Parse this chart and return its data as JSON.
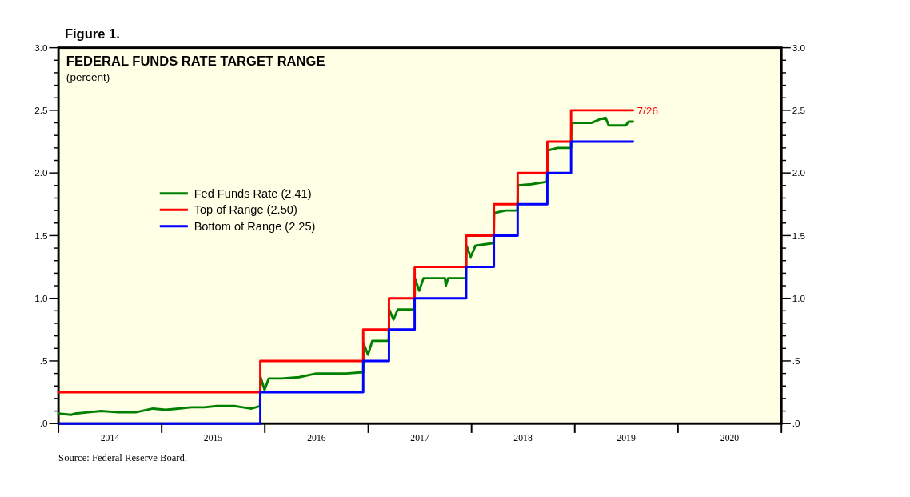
{
  "chart_data": {
    "type": "step",
    "title": "Figure 1.",
    "subtitle": "FEDERAL FUNDS RATE TARGET RANGE",
    "ylabel": "(percent)",
    "xlim": [
      "2014-01-01",
      "2021-01-01"
    ],
    "xticks": [
      {
        "value": "2014-01-01",
        "label": null
      },
      {
        "value": "2014-07-02",
        "label": "2014"
      },
      {
        "value": "2015-01-01",
        "label": null
      },
      {
        "value": "2015-07-02",
        "label": "2015"
      },
      {
        "value": "2016-01-01",
        "label": null
      },
      {
        "value": "2016-07-02",
        "label": "2016"
      },
      {
        "value": "2017-01-01",
        "label": null
      },
      {
        "value": "2017-07-02",
        "label": "2017"
      },
      {
        "value": "2018-01-01",
        "label": null
      },
      {
        "value": "2018-07-02",
        "label": "2018"
      },
      {
        "value": "2019-01-01",
        "label": null
      },
      {
        "value": "2019-07-02",
        "label": "2019"
      },
      {
        "value": "2020-01-01",
        "label": null
      },
      {
        "value": "2020-07-02",
        "label": "2020"
      },
      {
        "value": "2021-01-01",
        "label": null
      }
    ],
    "ylim": [
      0,
      3
    ],
    "yticks": [
      {
        "value": 0,
        "label": ".0"
      },
      {
        "value": 0.1,
        "label": null
      },
      {
        "value": 0.2,
        "label": null
      },
      {
        "value": 0.3,
        "label": null
      },
      {
        "value": 0.4,
        "label": null
      },
      {
        "value": 0.5,
        "label": ".5"
      },
      {
        "value": 0.6,
        "label": null
      },
      {
        "value": 0.7,
        "label": null
      },
      {
        "value": 0.8,
        "label": null
      },
      {
        "value": 0.9,
        "label": null
      },
      {
        "value": 1,
        "label": "1.0"
      },
      {
        "value": 1.1,
        "label": null
      },
      {
        "value": 1.2,
        "label": null
      },
      {
        "value": 1.3,
        "label": null
      },
      {
        "value": 1.4,
        "label": null
      },
      {
        "value": 1.5,
        "label": "1.5"
      },
      {
        "value": 1.6,
        "label": null
      },
      {
        "value": 1.7,
        "label": null
      },
      {
        "value": 1.8,
        "label": null
      },
      {
        "value": 1.9,
        "label": null
      },
      {
        "value": 2,
        "label": "2.0"
      },
      {
        "value": 2.1,
        "label": null
      },
      {
        "value": 2.2,
        "label": null
      },
      {
        "value": 2.3,
        "label": null
      },
      {
        "value": 2.4,
        "label": null
      },
      {
        "value": 2.5,
        "label": "2.5"
      },
      {
        "value": 2.6,
        "label": null
      },
      {
        "value": 2.7,
        "label": null
      },
      {
        "value": 2.8,
        "label": null
      },
      {
        "value": 2.9,
        "label": null
      },
      {
        "value": 3,
        "label": "3.0"
      }
    ],
    "y2lim": [
      0,
      3
    ],
    "y2ticks": [
      {
        "value": 0,
        "label": ".0"
      },
      {
        "value": 0.1,
        "label": null
      },
      {
        "value": 0.2,
        "label": null
      },
      {
        "value": 0.3,
        "label": null
      },
      {
        "value": 0.4,
        "label": null
      },
      {
        "value": 0.5,
        "label": ".5"
      },
      {
        "value": 0.6,
        "label": null
      },
      {
        "value": 0.7,
        "label": null
      },
      {
        "value": 0.8,
        "label": null
      },
      {
        "value": 0.9,
        "label": null
      },
      {
        "value": 1,
        "label": "1.0"
      },
      {
        "value": 1.1,
        "label": null
      },
      {
        "value": 1.2,
        "label": null
      },
      {
        "value": 1.3,
        "label": null
      },
      {
        "value": 1.4,
        "label": null
      },
      {
        "value": 1.5,
        "label": "1.5"
      },
      {
        "value": 1.6,
        "label": null
      },
      {
        "value": 1.7,
        "label": null
      },
      {
        "value": 1.8,
        "label": null
      },
      {
        "value": 1.9,
        "label": null
      },
      {
        "value": 2,
        "label": "2.0"
      },
      {
        "value": 2.1,
        "label": null
      },
      {
        "value": 2.2,
        "label": null
      },
      {
        "value": 2.3,
        "label": null
      },
      {
        "value": 2.4,
        "label": null
      },
      {
        "value": 2.5,
        "label": "2.5"
      },
      {
        "value": 2.6,
        "label": null
      },
      {
        "value": 2.7,
        "label": null
      },
      {
        "value": 2.8,
        "label": null
      },
      {
        "value": 2.9,
        "label": null
      },
      {
        "value": 3,
        "label": "3.0"
      }
    ],
    "grid": false,
    "legend": "left",
    "series": [
      {
        "name": "Fed Funds Rate (2.41)",
        "color": "#008000",
        "type": "line",
        "x": [
          "2014-01-01",
          "2014-02-15",
          "2014-03-01",
          "2014-04-15",
          "2014-06-01",
          "2014-08-01",
          "2014-10-01",
          "2014-12-01",
          "2015-01-15",
          "2015-03-01",
          "2015-04-15",
          "2015-06-01",
          "2015-07-15",
          "2015-08-15",
          "2015-09-15",
          "2015-10-15",
          "2015-11-15",
          "2015-12-15",
          "2015-12-17",
          "2015-12-31",
          "2016-01-15",
          "2016-03-01",
          "2016-05-01",
          "2016-07-01",
          "2016-09-01",
          "2016-10-15",
          "2016-12-14",
          "2016-12-15",
          "2016-12-31",
          "2017-01-15",
          "2017-03-14",
          "2017-03-16",
          "2017-03-31",
          "2017-04-15",
          "2017-06-13",
          "2017-06-15",
          "2017-06-30",
          "2017-07-15",
          "2017-09-29",
          "2017-10-02",
          "2017-10-10",
          "2017-12-12",
          "2017-12-14",
          "2017-12-29",
          "2018-01-15",
          "2018-03-20",
          "2018-03-22",
          "2018-05-01",
          "2018-06-12",
          "2018-06-14",
          "2018-08-01",
          "2018-09-25",
          "2018-09-27",
          "2018-11-01",
          "2018-12-19",
          "2018-12-20",
          "2019-03-01",
          "2019-04-01",
          "2019-04-20",
          "2019-05-01",
          "2019-06-01",
          "2019-07-01",
          "2019-07-10",
          "2019-07-26"
        ],
        "values": [
          0.08,
          0.07,
          0.08,
          0.09,
          0.1,
          0.09,
          0.09,
          0.12,
          0.11,
          0.12,
          0.13,
          0.13,
          0.14,
          0.14,
          0.14,
          0.13,
          0.12,
          0.14,
          0.37,
          0.27,
          0.36,
          0.36,
          0.37,
          0.4,
          0.4,
          0.4,
          0.41,
          0.64,
          0.55,
          0.66,
          0.66,
          0.91,
          0.83,
          0.91,
          0.91,
          1.16,
          1.06,
          1.16,
          1.16,
          1.1,
          1.16,
          1.16,
          1.42,
          1.33,
          1.42,
          1.44,
          1.68,
          1.7,
          1.7,
          1.9,
          1.91,
          1.93,
          2.18,
          2.2,
          2.2,
          2.4,
          2.4,
          2.43,
          2.44,
          2.38,
          2.38,
          2.38,
          2.41,
          2.41
        ]
      },
      {
        "name": "Top of Range (2.50)",
        "color": "#ff0000",
        "x": [
          "2014-01-01",
          "2015-12-16",
          "2016-12-14",
          "2017-03-15",
          "2017-06-14",
          "2017-12-13",
          "2018-03-21",
          "2018-06-13",
          "2018-09-26",
          "2018-12-19",
          "2019-07-26"
        ],
        "values": [
          0.25,
          0.5,
          0.75,
          1,
          1.25,
          1.5,
          1.75,
          2,
          2.25,
          2.5,
          2.5
        ]
      },
      {
        "name": "Bottom of Range (2.25)",
        "color": "#0000ff",
        "x": [
          "2014-01-01",
          "2015-12-16",
          "2016-12-14",
          "2017-03-15",
          "2017-06-14",
          "2017-12-13",
          "2018-03-21",
          "2018-06-13",
          "2018-09-26",
          "2018-12-19",
          "2019-07-26"
        ],
        "values": [
          0,
          0.25,
          0.5,
          0.75,
          1,
          1.25,
          1.5,
          1.75,
          2,
          2.25,
          2.25
        ]
      }
    ],
    "annotations": [
      {
        "text": "7/26",
        "x": "2019-07-26",
        "y": 2.5
      },
      "Source: Federal Reserve Board."
    ]
  }
}
